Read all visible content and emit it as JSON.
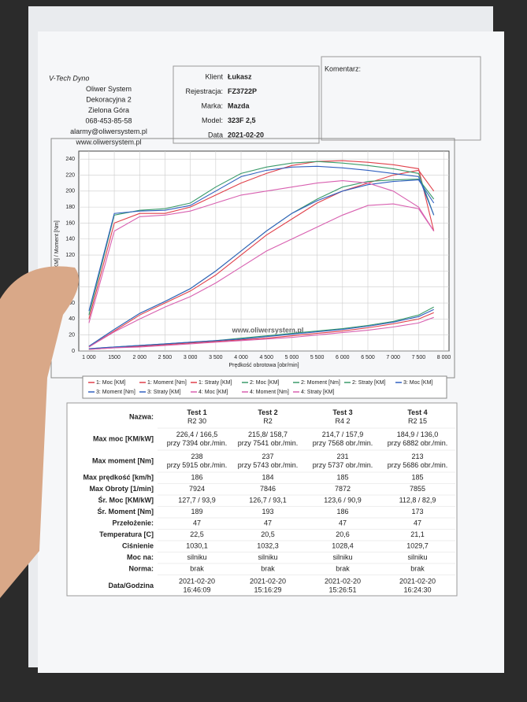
{
  "company": {
    "lines": [
      "V-Tech Dyno",
      "Oliwer System",
      "Dekoracyjna 2",
      "Zielona Góra",
      "068-453-85-58",
      "alarmy@oliwersystem.pl",
      "www.oliwersystem.pl"
    ]
  },
  "client": {
    "fields": [
      {
        "label": "Klient",
        "value": "Łukasz"
      },
      {
        "label": "Rejestracja:",
        "value": "FZ3722P"
      },
      {
        "label": "Marka:",
        "value": "Mazda"
      },
      {
        "label": "Model:",
        "value": "323F  2,5"
      },
      {
        "label": "Data",
        "value": "2021-02-20"
      }
    ]
  },
  "comment": {
    "label": "Komentarz:"
  },
  "chart_data": {
    "type": "line",
    "xlabel": "Prędkość obrotowa [obr/min]",
    "ylabel": "Moc [KM] / Moment [Nm]",
    "watermark": "www.oliwersystem.pl",
    "x": [
      1000,
      1500,
      2000,
      2500,
      3000,
      3500,
      4000,
      4500,
      5000,
      5500,
      6000,
      6500,
      7000,
      7500,
      7800
    ],
    "xlim": [
      800,
      8100
    ],
    "ylim": [
      0,
      250
    ],
    "grid": true,
    "xticks": [
      {
        "value": 1000,
        "label": "1 000"
      },
      1500,
      {
        "value": 2000,
        "label": "2 000"
      },
      {
        "value": 2500,
        "label": "2 500"
      },
      {
        "value": 3000,
        "label": "3 000"
      },
      {
        "value": 3500,
        "label": "3 500"
      },
      {
        "value": 4000,
        "label": "4 000"
      },
      {
        "value": 4500,
        "label": "4 500"
      },
      {
        "value": 5000,
        "label": "5 000"
      },
      {
        "value": 5500,
        "label": "5 500"
      },
      {
        "value": 6000,
        "label": "6 000"
      },
      {
        "value": 6500,
        "label": "6 500"
      },
      {
        "value": 7000,
        "label": "7 000"
      },
      {
        "value": 7500,
        "label": "7 500"
      },
      {
        "value": 8000,
        "label": "8 000"
      }
    ],
    "yticks": [
      0,
      20,
      40,
      60,
      80,
      100,
      120,
      140,
      160,
      180,
      200,
      220,
      240
    ],
    "series": [
      {
        "name": "1: Moc [KM]",
        "color": "#e0404a",
        "values": [
          5,
          25,
          45,
          60,
          75,
          95,
          120,
          145,
          165,
          185,
          200,
          210,
          220,
          226,
          200
        ]
      },
      {
        "name": "1: Moment [Nm]",
        "color": "#e0404a",
        "values": [
          40,
          160,
          172,
          172,
          180,
          195,
          210,
          222,
          232,
          237,
          238,
          236,
          233,
          228,
          150
        ]
      },
      {
        "name": "1: Straty [KM]",
        "color": "#e0404a",
        "values": [
          2,
          4,
          6,
          8,
          10,
          12,
          14,
          16,
          19,
          22,
          25,
          29,
          34,
          40,
          48
        ]
      },
      {
        "name": "2: Moc [KM]",
        "color": "#3a9a6a",
        "values": [
          6,
          27,
          47,
          62,
          78,
          100,
          125,
          150,
          172,
          190,
          205,
          212,
          214,
          215,
          190
        ]
      },
      {
        "name": "2: Moment [Nm]",
        "color": "#3a9a6a",
        "values": [
          45,
          170,
          176,
          178,
          185,
          205,
          222,
          230,
          235,
          237,
          235,
          232,
          228,
          222,
          170
        ]
      },
      {
        "name": "2: Straty [KM]",
        "color": "#3a9a6a",
        "values": [
          3,
          5,
          7,
          9,
          11,
          13,
          16,
          19,
          22,
          25,
          28,
          32,
          37,
          45,
          55
        ]
      },
      {
        "name": "3: Moc [KM]",
        "color": "#3060c0",
        "values": [
          6,
          27,
          47,
          62,
          78,
          100,
          125,
          150,
          172,
          188,
          200,
          208,
          212,
          214,
          185
        ]
      },
      {
        "name": "3: Moment [Nm]",
        "color": "#3060c0",
        "values": [
          50,
          172,
          175,
          176,
          182,
          200,
          218,
          226,
          230,
          231,
          229,
          226,
          222,
          218,
          170
        ]
      },
      {
        "name": "3: Straty [KM]",
        "color": "#3060c0",
        "values": [
          3,
          5,
          7,
          9,
          11,
          13,
          15,
          18,
          21,
          24,
          27,
          31,
          36,
          43,
          52
        ]
      },
      {
        "name": "4: Moc [KM]",
        "color": "#d860b0",
        "values": [
          5,
          24,
          40,
          55,
          68,
          85,
          105,
          125,
          140,
          155,
          170,
          182,
          184,
          178,
          150
        ]
      },
      {
        "name": "4: Moment [Nm]",
        "color": "#d860b0",
        "values": [
          35,
          150,
          168,
          170,
          175,
          185,
          195,
          200,
          205,
          210,
          213,
          210,
          200,
          180,
          150
        ]
      },
      {
        "name": "4: Straty [KM]",
        "color": "#d860b0",
        "values": [
          2,
          4,
          5,
          7,
          9,
          11,
          13,
          15,
          17,
          20,
          23,
          26,
          30,
          35,
          42
        ]
      }
    ]
  },
  "table": {
    "rows": [
      {
        "label": "Nazwa:",
        "cells": [
          [
            "Test 1",
            "R2  30"
          ],
          [
            "Test 2",
            "R2"
          ],
          [
            "Test 3",
            "R4  2"
          ],
          [
            "Test 4",
            "R2  15"
          ]
        ]
      },
      {
        "label": "Max moc [KM/kW]",
        "cells": [
          [
            "226,4 / 166,5",
            "przy 7394 obr./min."
          ],
          [
            "215,8/ 158,7",
            "przy 7541 obr./min."
          ],
          [
            "214,7 / 157,9",
            "przy 7568 obr./min."
          ],
          [
            "184,9 / 136,0",
            "przy 6882 obr./min."
          ]
        ]
      },
      {
        "label": "Max moment [Nm]",
        "cells": [
          [
            "238",
            "przy 5915 obr./min."
          ],
          [
            "237",
            "przy 5743 obr./min."
          ],
          [
            "231",
            "przy 5737 obr./min."
          ],
          [
            "213",
            "przy 5686 obr./min."
          ]
        ]
      },
      {
        "label": "Max prędkość [km/h]",
        "cells": [
          [
            "186"
          ],
          [
            "184"
          ],
          [
            "185"
          ],
          [
            "185"
          ]
        ]
      },
      {
        "label": "Max Obroty [1/min]",
        "cells": [
          [
            "7924"
          ],
          [
            "7846"
          ],
          [
            "7872"
          ],
          [
            "7855"
          ]
        ]
      },
      {
        "label": "Śr. Moc [KM/kW]",
        "cells": [
          [
            "127,7 / 93,9"
          ],
          [
            "126,7 / 93,1"
          ],
          [
            "123,6 / 90,9"
          ],
          [
            "112,8 / 82,9"
          ]
        ]
      },
      {
        "label": "Śr. Moment [Nm]",
        "cells": [
          [
            "189"
          ],
          [
            "193"
          ],
          [
            "186"
          ],
          [
            "173"
          ]
        ]
      },
      {
        "label": "Przełożenie:",
        "cells": [
          [
            "47"
          ],
          [
            "47"
          ],
          [
            "47"
          ],
          [
            "47"
          ]
        ]
      },
      {
        "label": "Temperatura [C]",
        "cells": [
          [
            "22,5"
          ],
          [
            "20,5"
          ],
          [
            "20,6"
          ],
          [
            "21,1"
          ]
        ]
      },
      {
        "label": "Ciśnienie",
        "cells": [
          [
            "1030,1"
          ],
          [
            "1032,3"
          ],
          [
            "1028,4"
          ],
          [
            "1029,7"
          ]
        ]
      },
      {
        "label": "Moc na:",
        "cells": [
          [
            "silniku"
          ],
          [
            "silniku"
          ],
          [
            "silniku"
          ],
          [
            "silniku"
          ]
        ]
      },
      {
        "label": "Norma:",
        "cells": [
          [
            "brak"
          ],
          [
            "brak"
          ],
          [
            "brak"
          ],
          [
            "brak"
          ]
        ]
      },
      {
        "label": "Data/Godzina",
        "cells": [
          [
            "2021-02-20",
            "16:46:09"
          ],
          [
            "2021-02-20",
            "15:16:29"
          ],
          [
            "2021-02-20",
            "15:26:51"
          ],
          [
            "2021-02-20",
            "16:24:30"
          ]
        ]
      }
    ]
  }
}
